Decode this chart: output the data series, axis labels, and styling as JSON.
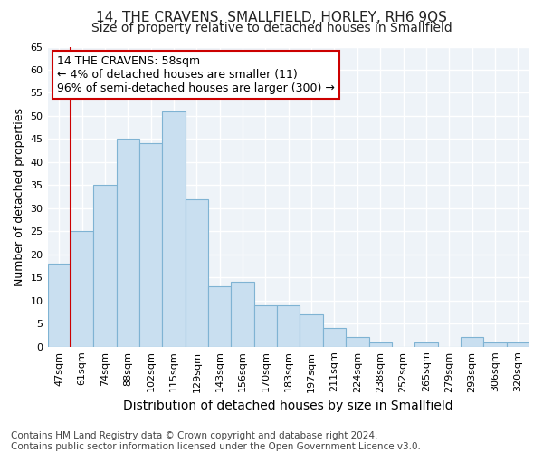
{
  "title": "14, THE CRAVENS, SMALLFIELD, HORLEY, RH6 9QS",
  "subtitle": "Size of property relative to detached houses in Smallfield",
  "xlabel": "Distribution of detached houses by size in Smallfield",
  "ylabel": "Number of detached properties",
  "categories": [
    "47sqm",
    "61sqm",
    "74sqm",
    "88sqm",
    "102sqm",
    "115sqm",
    "129sqm",
    "143sqm",
    "156sqm",
    "170sqm",
    "183sqm",
    "197sqm",
    "211sqm",
    "224sqm",
    "238sqm",
    "252sqm",
    "265sqm",
    "279sqm",
    "293sqm",
    "306sqm",
    "320sqm"
  ],
  "values": [
    18,
    25,
    35,
    45,
    44,
    51,
    32,
    13,
    14,
    9,
    9,
    7,
    4,
    2,
    1,
    0,
    1,
    0,
    2,
    1,
    1
  ],
  "bar_color": "#c9dff0",
  "bar_edge_color": "#7fb3d3",
  "highlight_line_color": "#cc0000",
  "annotation_text": "14 THE CRAVENS: 58sqm\n← 4% of detached houses are smaller (11)\n96% of semi-detached houses are larger (300) →",
  "annotation_box_color": "#ffffff",
  "annotation_box_edge": "#cc0000",
  "ylim": [
    0,
    65
  ],
  "yticks": [
    0,
    5,
    10,
    15,
    20,
    25,
    30,
    35,
    40,
    45,
    50,
    55,
    60,
    65
  ],
  "footnote": "Contains HM Land Registry data © Crown copyright and database right 2024.\nContains public sector information licensed under the Open Government Licence v3.0.",
  "fig_bg_color": "#ffffff",
  "plot_bg_color": "#eef3f8",
  "grid_color": "#ffffff",
  "title_fontsize": 11,
  "subtitle_fontsize": 10,
  "xlabel_fontsize": 10,
  "ylabel_fontsize": 9,
  "tick_fontsize": 8,
  "annotation_fontsize": 9,
  "footnote_fontsize": 7.5
}
